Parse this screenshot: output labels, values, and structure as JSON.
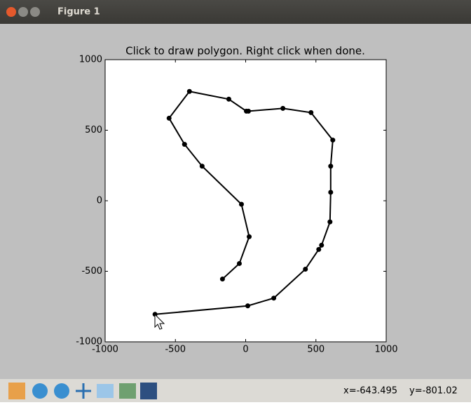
{
  "window": {
    "title": "Figure 1",
    "status": [
      "x=-643.495",
      "y=-801.02"
    ]
  },
  "chart_data": {
    "type": "line",
    "title": "Click to draw polygon. Right click when done.",
    "series": [
      {
        "color": "#000000",
        "x": [
          -165,
          -45,
          25,
          -30,
          -310,
          -435,
          -545,
          -400,
          -120,
          5,
          20,
          265,
          465,
          620,
          605,
          605,
          600,
          540,
          520,
          425,
          200,
          15,
          -645
        ],
        "values": [
          -555,
          -445,
          -255,
          -25,
          245,
          400,
          585,
          775,
          720,
          635,
          635,
          655,
          625,
          430,
          245,
          60,
          -150,
          -315,
          -345,
          -485,
          -690,
          -745,
          -805
        ]
      }
    ],
    "xlim": [
      -1000,
      1000
    ],
    "ylim": [
      -1000,
      1000
    ],
    "xticks": [
      -1000,
      -500,
      0,
      500,
      1000
    ],
    "yticks": [
      -1000,
      -500,
      0,
      500,
      1000
    ]
  }
}
